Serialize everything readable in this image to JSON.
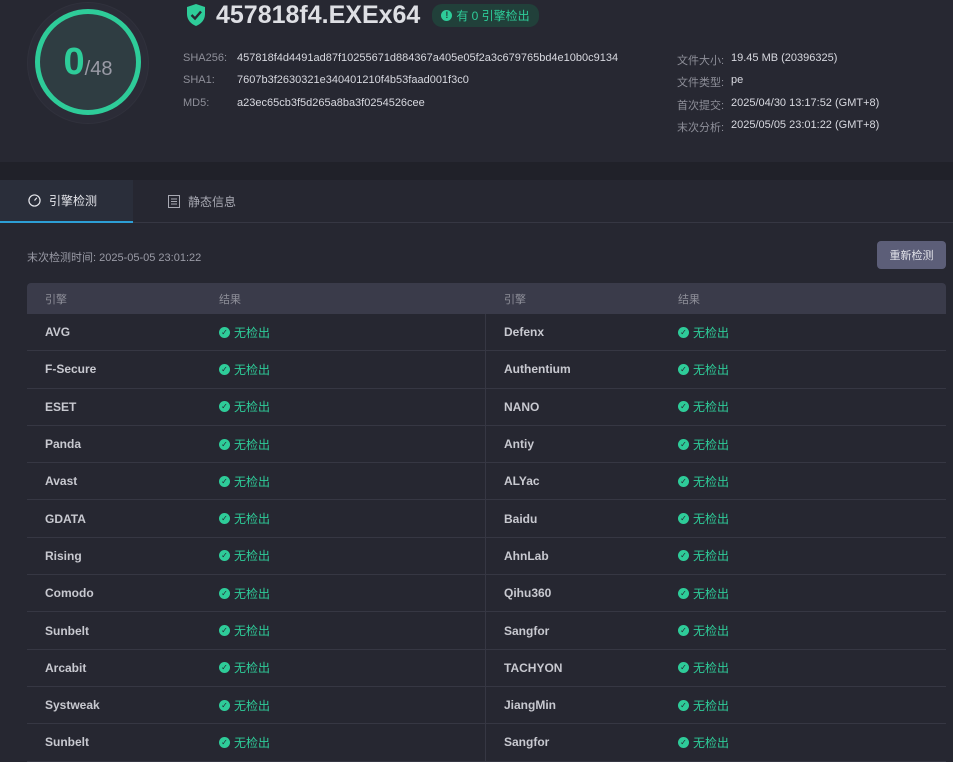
{
  "score": {
    "detected": "0",
    "total": "/48"
  },
  "file": {
    "name": "457818f4.EXEx64",
    "badge": "有 0 引擎检出"
  },
  "hashes": [
    {
      "k": "SHA256:",
      "v": "457818f4d4491ad87f10255671d884367a405e05f2a3c679765bd4e10b0c9134"
    },
    {
      "k": "SHA1:",
      "v": "7607b3f2630321e340401210f4b53faad001f3c0"
    },
    {
      "k": "MD5:",
      "v": "a23ec65cb3f5d265a8ba3f0254526cee"
    }
  ],
  "meta": [
    {
      "k": "文件大小:",
      "v": "19.45 MB (20396325)"
    },
    {
      "k": "文件类型:",
      "v": "pe"
    },
    {
      "k": "首次提交:",
      "v": "2025/04/30 13:17:52 (GMT+8)"
    },
    {
      "k": "末次分析:",
      "v": "2025/05/05 23:01:22 (GMT+8)"
    }
  ],
  "tabs": [
    {
      "label": "引擎检测",
      "icon": "gauge-icon"
    },
    {
      "label": "静态信息",
      "icon": "list-icon"
    }
  ],
  "last_scan": "末次检测时间: 2025-05-05 23:01:22",
  "rescan_label": "重新检测",
  "colors": {
    "accent": "#2ecc99",
    "tab_underline": "#2d9fd6"
  },
  "table": {
    "headers": [
      "引擎",
      "结果",
      "引擎",
      "结果"
    ],
    "rows": [
      [
        "AVG",
        "无检出",
        "Defenx",
        "无检出"
      ],
      [
        "F-Secure",
        "无检出",
        "Authentium",
        "无检出"
      ],
      [
        "ESET",
        "无检出",
        "NANO",
        "无检出"
      ],
      [
        "Panda",
        "无检出",
        "Antiy",
        "无检出"
      ],
      [
        "Avast",
        "无检出",
        "ALYac",
        "无检出"
      ],
      [
        "GDATA",
        "无检出",
        "Baidu",
        "无检出"
      ],
      [
        "Rising",
        "无检出",
        "AhnLab",
        "无检出"
      ],
      [
        "Comodo",
        "无检出",
        "Qihu360",
        "无检出"
      ],
      [
        "Sunbelt",
        "无检出",
        "Sangfor",
        "无检出"
      ],
      [
        "Arcabit",
        "无检出",
        "TACHYON",
        "无检出"
      ],
      [
        "Systweak",
        "无检出",
        "JiangMin",
        "无检出"
      ],
      [
        "Sunbelt",
        "无检出",
        "Sangfor",
        "无检出"
      ]
    ]
  }
}
